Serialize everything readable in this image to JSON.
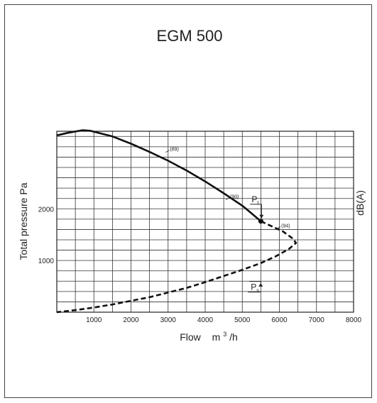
{
  "chart_data": {
    "type": "line",
    "title": "EGM 500",
    "xlabel": "Flow",
    "xunit": "m",
    "xunit_sup": "3",
    "xunit_tail": "/h",
    "ylabel": "Total pressure  Pa",
    "y2label": "dB(A)",
    "xlim": [
      0,
      8000
    ],
    "ylim": [
      0,
      3500
    ],
    "x_ticks": [
      1000,
      2000,
      3000,
      4000,
      5000,
      6000,
      7000,
      8000
    ],
    "y_ticks": [
      1000,
      2000
    ],
    "grid": true,
    "series": [
      {
        "style": "solid",
        "x": [
          0,
          300,
          700,
          900,
          1500,
          2000,
          2500,
          3000,
          3500,
          4000,
          4500,
          5000,
          5500
        ],
        "y": [
          3420,
          3470,
          3520,
          3510,
          3400,
          3260,
          3100,
          2930,
          2740,
          2530,
          2300,
          2060,
          1760
        ]
      },
      {
        "style": "dashed",
        "x": [
          5500,
          5800,
          6100,
          6350,
          6450,
          6250,
          5900,
          5500,
          5000,
          4500,
          4000,
          3500,
          3000,
          2500,
          2000,
          1500,
          1000,
          500,
          0
        ],
        "y": [
          1760,
          1660,
          1560,
          1430,
          1340,
          1220,
          1080,
          950,
          820,
          700,
          580,
          470,
          380,
          290,
          220,
          150,
          90,
          40,
          0
        ]
      }
    ],
    "operating_point": {
      "x": 5500,
      "y": 1760
    },
    "annotations": [
      {
        "text": "(89)",
        "x": 3050,
        "y": 3120
      },
      {
        "text": "(90)",
        "x": 4670,
        "y": 2200
      },
      {
        "text": "(94)",
        "x": 6050,
        "y": 1640
      },
      {
        "text": "P",
        "sub": "t",
        "x": 5250,
        "y": 2130
      },
      {
        "text": "P",
        "sub": "s",
        "x": 5230,
        "y": 430
      }
    ]
  }
}
